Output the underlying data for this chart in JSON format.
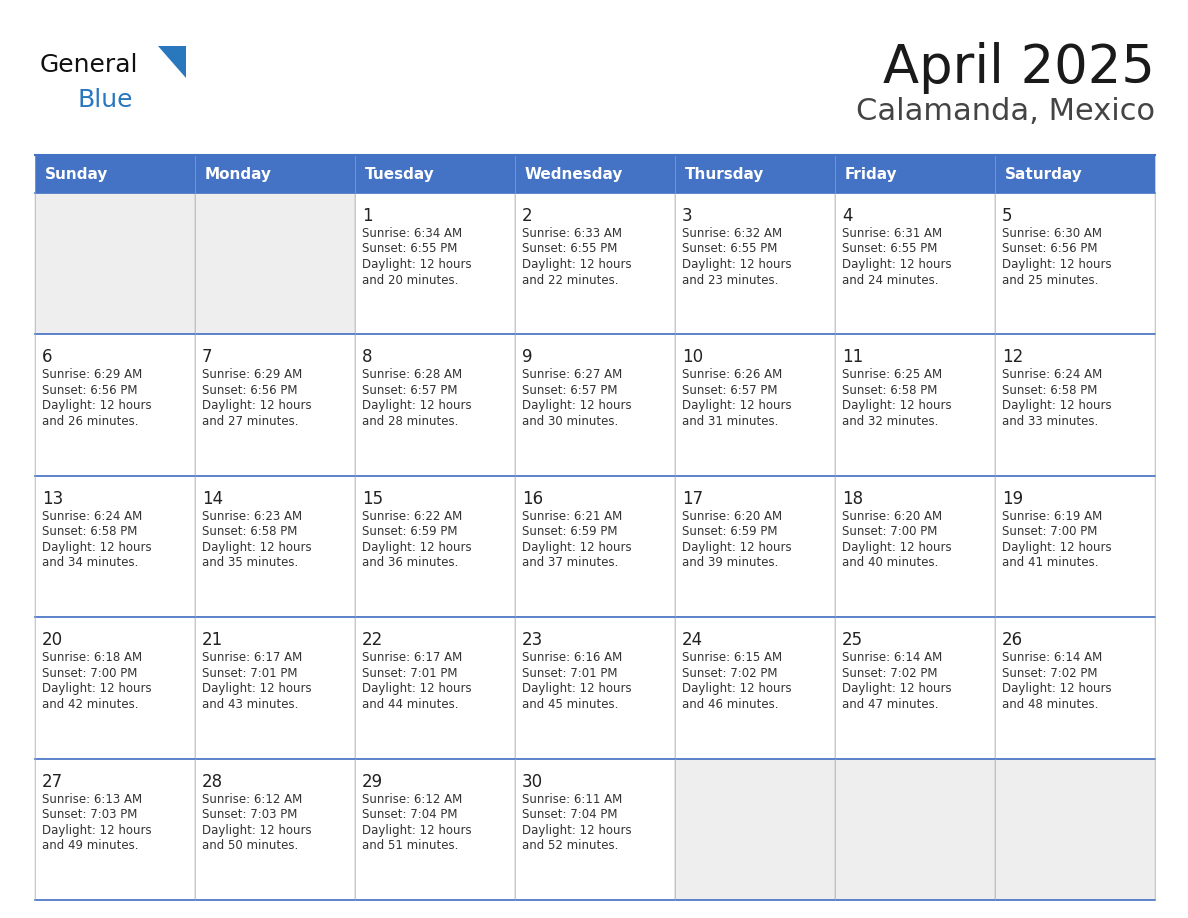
{
  "title": "April 2025",
  "subtitle": "Calamanda, Mexico",
  "header_color": "#4472C4",
  "header_text_color": "#FFFFFF",
  "header_days": [
    "Sunday",
    "Monday",
    "Tuesday",
    "Wednesday",
    "Thursday",
    "Friday",
    "Saturday"
  ],
  "cell_bg_color": "#FFFFFF",
  "empty_cell_bg": "#EEEEEE",
  "day_number_color": "#222222",
  "text_color": "#333333",
  "line_color": "#4472C4",
  "title_color": "#1a1a1a",
  "subtitle_color": "#444444",
  "logo_text1": "General",
  "logo_text2": "Blue",
  "logo_color1": "#111111",
  "logo_color2": "#2977BC",
  "triangle_color": "#2977BC",
  "weeks": [
    [
      {
        "day": "",
        "sunrise": "",
        "sunset": "",
        "daylight": ""
      },
      {
        "day": "",
        "sunrise": "",
        "sunset": "",
        "daylight": ""
      },
      {
        "day": "1",
        "sunrise": "6:34 AM",
        "sunset": "6:55 PM",
        "daylight": "12 hours and 20 minutes."
      },
      {
        "day": "2",
        "sunrise": "6:33 AM",
        "sunset": "6:55 PM",
        "daylight": "12 hours and 22 minutes."
      },
      {
        "day": "3",
        "sunrise": "6:32 AM",
        "sunset": "6:55 PM",
        "daylight": "12 hours and 23 minutes."
      },
      {
        "day": "4",
        "sunrise": "6:31 AM",
        "sunset": "6:55 PM",
        "daylight": "12 hours and 24 minutes."
      },
      {
        "day": "5",
        "sunrise": "6:30 AM",
        "sunset": "6:56 PM",
        "daylight": "12 hours and 25 minutes."
      }
    ],
    [
      {
        "day": "6",
        "sunrise": "6:29 AM",
        "sunset": "6:56 PM",
        "daylight": "12 hours and 26 minutes."
      },
      {
        "day": "7",
        "sunrise": "6:29 AM",
        "sunset": "6:56 PM",
        "daylight": "12 hours and 27 minutes."
      },
      {
        "day": "8",
        "sunrise": "6:28 AM",
        "sunset": "6:57 PM",
        "daylight": "12 hours and 28 minutes."
      },
      {
        "day": "9",
        "sunrise": "6:27 AM",
        "sunset": "6:57 PM",
        "daylight": "12 hours and 30 minutes."
      },
      {
        "day": "10",
        "sunrise": "6:26 AM",
        "sunset": "6:57 PM",
        "daylight": "12 hours and 31 minutes."
      },
      {
        "day": "11",
        "sunrise": "6:25 AM",
        "sunset": "6:58 PM",
        "daylight": "12 hours and 32 minutes."
      },
      {
        "day": "12",
        "sunrise": "6:24 AM",
        "sunset": "6:58 PM",
        "daylight": "12 hours and 33 minutes."
      }
    ],
    [
      {
        "day": "13",
        "sunrise": "6:24 AM",
        "sunset": "6:58 PM",
        "daylight": "12 hours and 34 minutes."
      },
      {
        "day": "14",
        "sunrise": "6:23 AM",
        "sunset": "6:58 PM",
        "daylight": "12 hours and 35 minutes."
      },
      {
        "day": "15",
        "sunrise": "6:22 AM",
        "sunset": "6:59 PM",
        "daylight": "12 hours and 36 minutes."
      },
      {
        "day": "16",
        "sunrise": "6:21 AM",
        "sunset": "6:59 PM",
        "daylight": "12 hours and 37 minutes."
      },
      {
        "day": "17",
        "sunrise": "6:20 AM",
        "sunset": "6:59 PM",
        "daylight": "12 hours and 39 minutes."
      },
      {
        "day": "18",
        "sunrise": "6:20 AM",
        "sunset": "7:00 PM",
        "daylight": "12 hours and 40 minutes."
      },
      {
        "day": "19",
        "sunrise": "6:19 AM",
        "sunset": "7:00 PM",
        "daylight": "12 hours and 41 minutes."
      }
    ],
    [
      {
        "day": "20",
        "sunrise": "6:18 AM",
        "sunset": "7:00 PM",
        "daylight": "12 hours and 42 minutes."
      },
      {
        "day": "21",
        "sunrise": "6:17 AM",
        "sunset": "7:01 PM",
        "daylight": "12 hours and 43 minutes."
      },
      {
        "day": "22",
        "sunrise": "6:17 AM",
        "sunset": "7:01 PM",
        "daylight": "12 hours and 44 minutes."
      },
      {
        "day": "23",
        "sunrise": "6:16 AM",
        "sunset": "7:01 PM",
        "daylight": "12 hours and 45 minutes."
      },
      {
        "day": "24",
        "sunrise": "6:15 AM",
        "sunset": "7:02 PM",
        "daylight": "12 hours and 46 minutes."
      },
      {
        "day": "25",
        "sunrise": "6:14 AM",
        "sunset": "7:02 PM",
        "daylight": "12 hours and 47 minutes."
      },
      {
        "day": "26",
        "sunrise": "6:14 AM",
        "sunset": "7:02 PM",
        "daylight": "12 hours and 48 minutes."
      }
    ],
    [
      {
        "day": "27",
        "sunrise": "6:13 AM",
        "sunset": "7:03 PM",
        "daylight": "12 hours and 49 minutes."
      },
      {
        "day": "28",
        "sunrise": "6:12 AM",
        "sunset": "7:03 PM",
        "daylight": "12 hours and 50 minutes."
      },
      {
        "day": "29",
        "sunrise": "6:12 AM",
        "sunset": "7:04 PM",
        "daylight": "12 hours and 51 minutes."
      },
      {
        "day": "30",
        "sunrise": "6:11 AM",
        "sunset": "7:04 PM",
        "daylight": "12 hours and 52 minutes."
      },
      {
        "day": "",
        "sunrise": "",
        "sunset": "",
        "daylight": ""
      },
      {
        "day": "",
        "sunrise": "",
        "sunset": "",
        "daylight": ""
      },
      {
        "day": "",
        "sunrise": "",
        "sunset": "",
        "daylight": ""
      }
    ]
  ]
}
